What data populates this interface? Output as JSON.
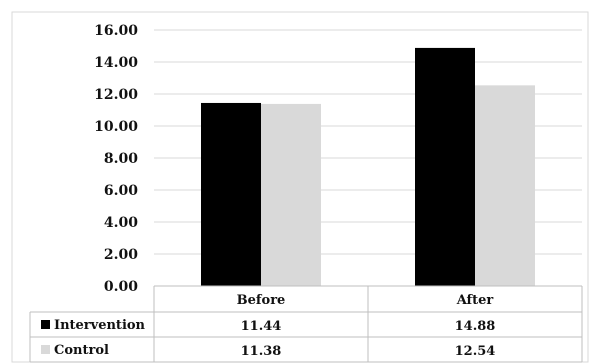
{
  "chart_data": {
    "type": "bar",
    "categories": [
      "Before",
      "After"
    ],
    "series": [
      {
        "name": "Intervention",
        "values": [
          11.44,
          14.88
        ],
        "color": "#000000"
      },
      {
        "name": "Control",
        "values": [
          11.38,
          12.54
        ],
        "color": "#d9d9d9"
      }
    ],
    "y_ticks": [
      "0.00",
      "2.00",
      "4.00",
      "6.00",
      "8.00",
      "10.00",
      "12.00",
      "14.00",
      "16.00"
    ],
    "ylim": [
      0,
      16
    ],
    "grid": true,
    "data_table": {
      "rows": [
        {
          "series": "Intervention",
          "cells": [
            "11.44",
            "14.88"
          ]
        },
        {
          "series": "Control",
          "cells": [
            "11.38",
            "12.54"
          ]
        }
      ]
    }
  }
}
